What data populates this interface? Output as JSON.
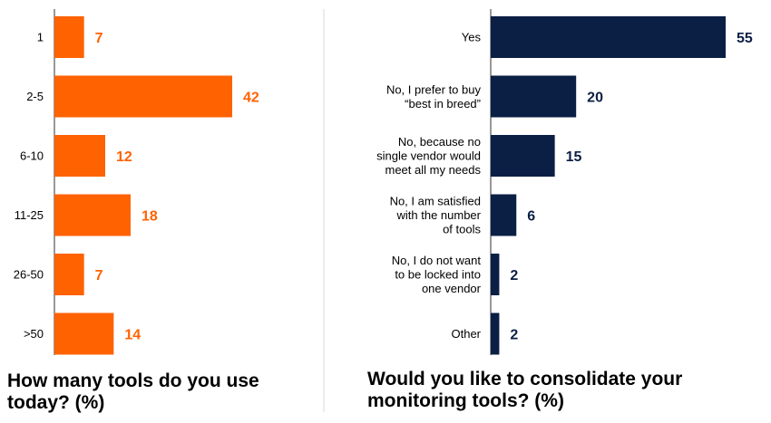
{
  "chart_data": [
    {
      "type": "bar",
      "orientation": "horizontal",
      "title": "How many tools do you use today? (%)",
      "categories": [
        "1",
        "2-5",
        "6-10",
        "11-25",
        "26-50",
        ">50"
      ],
      "values": [
        7,
        42,
        12,
        18,
        7,
        14
      ],
      "color": "#FF6200",
      "label_color": "#FF6200",
      "xlim": [
        0,
        42
      ]
    },
    {
      "type": "bar",
      "orientation": "horizontal",
      "title": "Would you like to consolidate your monitoring tools? (%)",
      "categories": [
        "Yes",
        "No, I prefer to buy\n“best in breed”",
        "No, because no\nsingle vendor would\nmeet all my needs",
        "No, I am satisfied\nwith the number\nof tools",
        "No, I do not want\nto be locked into\none vendor",
        "Other"
      ],
      "values": [
        55,
        20,
        15,
        6,
        2,
        2
      ],
      "color": "#0B1F44",
      "label_color": "#0B1F44",
      "xlim": [
        0,
        55
      ]
    }
  ],
  "colors": {
    "axis": "#333333",
    "divider": "#d9d9d9",
    "category_text": "#000000"
  }
}
